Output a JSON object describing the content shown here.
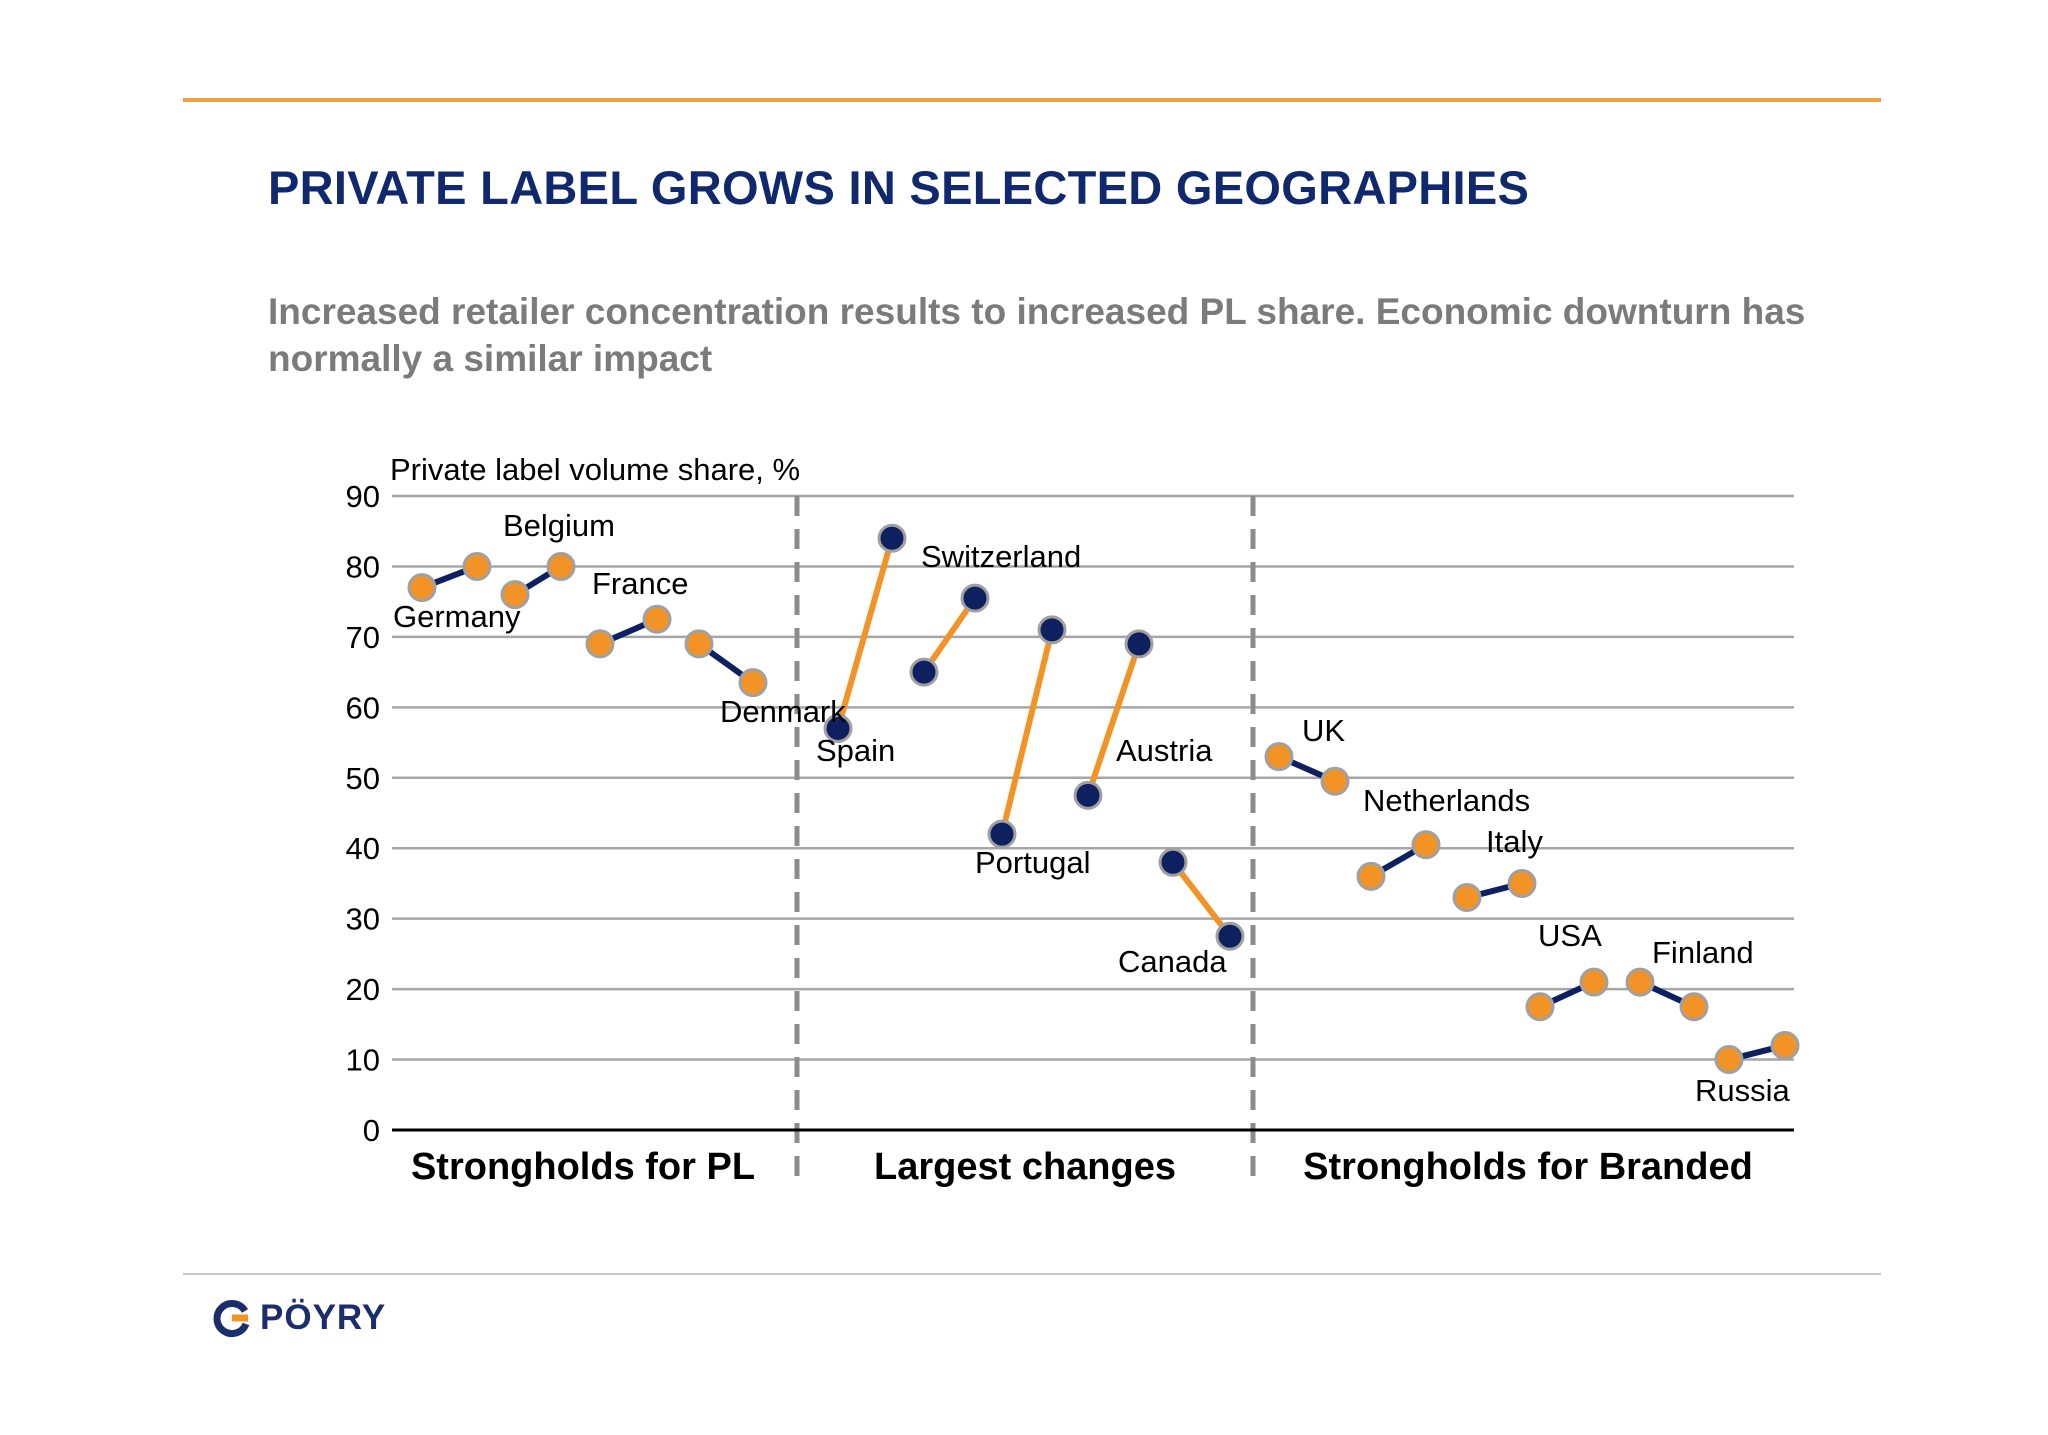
{
  "title": "PRIVATE LABEL GROWS IN SELECTED GEOGRAPHIES",
  "subtitle": "Increased retailer concentration results to increased PL share. Economic downturn has normally a similar impact",
  "brand": {
    "name": "PÖYRY"
  },
  "colors": {
    "navy": "#0f2060",
    "orange": "#f39325",
    "title": "#10286e",
    "subtitle": "#7b7b7b",
    "rule": "#f0a040"
  },
  "chart_data": {
    "type": "scatter",
    "title": "",
    "ylabel": "Private label volume share, %",
    "ylim": [
      0,
      90
    ],
    "yticks": [
      0,
      10,
      20,
      30,
      40,
      50,
      60,
      70,
      80,
      90
    ],
    "grid": true,
    "groups": [
      "Strongholds for PL",
      "Largest changes",
      "Strongholds for Branded"
    ],
    "series": [
      {
        "name": "Germany",
        "group": 0,
        "values": [
          77,
          80
        ],
        "line": "navy",
        "marker": "orange"
      },
      {
        "name": "Belgium",
        "group": 0,
        "values": [
          76,
          80
        ],
        "line": "navy",
        "marker": "orange"
      },
      {
        "name": "France",
        "group": 0,
        "values": [
          69,
          72.5
        ],
        "line": "navy",
        "marker": "orange"
      },
      {
        "name": "Denmark",
        "group": 0,
        "values": [
          69,
          63.5
        ],
        "line": "navy",
        "marker": "orange"
      },
      {
        "name": "Spain",
        "group": 1,
        "values": [
          57,
          84
        ],
        "line": "orange",
        "marker": "navy"
      },
      {
        "name": "Switzerland",
        "group": 1,
        "values": [
          65,
          75.5
        ],
        "line": "orange",
        "marker": "navy"
      },
      {
        "name": "Portugal",
        "group": 1,
        "values": [
          42,
          71
        ],
        "line": "orange",
        "marker": "navy"
      },
      {
        "name": "Austria",
        "group": 1,
        "values": [
          47.5,
          69
        ],
        "line": "orange",
        "marker": "navy"
      },
      {
        "name": "Canada",
        "group": 1,
        "values": [
          38,
          27.5
        ],
        "line": "orange",
        "marker": "navy"
      },
      {
        "name": "UK",
        "group": 2,
        "values": [
          53,
          49.5
        ],
        "line": "navy",
        "marker": "orange"
      },
      {
        "name": "Netherlands",
        "group": 2,
        "values": [
          36,
          40.5
        ],
        "line": "navy",
        "marker": "orange"
      },
      {
        "name": "Italy",
        "group": 2,
        "values": [
          33,
          35
        ],
        "line": "navy",
        "marker": "orange"
      },
      {
        "name": "USA",
        "group": 2,
        "values": [
          17.5,
          21
        ],
        "line": "navy",
        "marker": "orange"
      },
      {
        "name": "Finland",
        "group": 2,
        "values": [
          21,
          17.5
        ],
        "line": "navy",
        "marker": "orange"
      },
      {
        "name": "Russia",
        "group": 2,
        "values": [
          10,
          12
        ],
        "line": "navy",
        "marker": "orange"
      }
    ]
  }
}
